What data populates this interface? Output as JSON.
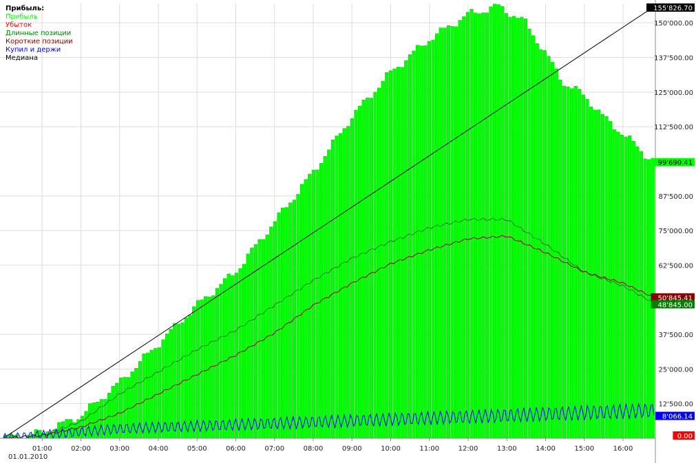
{
  "chart_data": {
    "type": "bar",
    "title": "Прибыль:",
    "date_label": "01.01.2010",
    "legend": [
      {
        "label": "Прибыль",
        "color": "#00ff00"
      },
      {
        "label": "Убыток",
        "color": "#ff0000"
      },
      {
        "label": "Длинные позиции",
        "color": "#008000"
      },
      {
        "label": "Короткие позиции",
        "color": "#8b0000"
      },
      {
        "label": "Купил и держи",
        "color": "#0000ff"
      },
      {
        "label": "Медиана",
        "color": "#000000"
      }
    ],
    "x_ticks": [
      "01:00",
      "02:00",
      "03:00",
      "04:00",
      "05:00",
      "06:00",
      "07:00",
      "08:00",
      "09:00",
      "10:00",
      "11:00",
      "12:00",
      "13:00",
      "14:00",
      "15:00",
      "16:00"
    ],
    "y_ticks": [
      "150'000.00",
      "137'500.00",
      "125'000.00",
      "112'500.00",
      "87'500.00",
      "75'000.00",
      "62'500.00",
      "37'500.00",
      "25'000.00",
      "12'500.00"
    ],
    "ylim": [
      0,
      157000
    ],
    "xlim": [
      0,
      16.8
    ],
    "grid": true,
    "value_labels": [
      {
        "text": "155'826.70",
        "value": 155826.7,
        "bg": "#000000",
        "fg": "#ffffff"
      },
      {
        "text": "99'690.41",
        "value": 99690.41,
        "bg": "#00ff00",
        "fg": "#000000"
      },
      {
        "text": "50'845.41",
        "value": 50845.41,
        "bg": "#8b0000",
        "fg": "#ffffff"
      },
      {
        "text": "48'845.00",
        "value": 48845.0,
        "bg": "#008000",
        "fg": "#ffffff"
      },
      {
        "text": "8'066.14",
        "value": 8066.14,
        "bg": "#0000ff",
        "fg": "#ffffff"
      },
      {
        "text": "0.00",
        "value": 0,
        "bg": "#ff0000",
        "fg": "#ffffff"
      }
    ],
    "profit_curve": {
      "x": [
        0,
        1,
        2,
        3,
        4,
        5,
        6,
        7,
        8,
        9,
        10,
        11,
        12,
        12.8,
        13.5,
        14,
        14.5,
        15,
        15.5,
        16,
        16.8
      ],
      "y": [
        0,
        2000,
        8000,
        20000,
        34000,
        48000,
        60000,
        78000,
        96000,
        116000,
        132000,
        144000,
        153000,
        156000,
        150000,
        139000,
        128000,
        124000,
        116000,
        110000,
        99690
      ]
    },
    "series": [
      {
        "name": "Длинные позиции",
        "color": "#008000",
        "x": [
          0,
          1,
          2,
          3,
          4,
          5,
          6,
          7,
          8,
          9,
          10,
          11,
          12,
          13,
          14,
          15,
          16,
          16.8
        ],
        "y": [
          0,
          1000,
          6000,
          16000,
          24000,
          32000,
          39000,
          48000,
          57000,
          65000,
          71000,
          76000,
          79000,
          79000,
          70000,
          60000,
          55000,
          48845
        ]
      },
      {
        "name": "Короткие позиции",
        "color": "#8b0000",
        "x": [
          0,
          1,
          2,
          3,
          4,
          5,
          6,
          7,
          8,
          9,
          10,
          11,
          12,
          13,
          14,
          15,
          16,
          16.8
        ],
        "y": [
          0,
          1000,
          4000,
          9000,
          16000,
          23000,
          30000,
          38000,
          48000,
          56000,
          63000,
          68000,
          72000,
          73000,
          67000,
          60000,
          56000,
          50845
        ]
      },
      {
        "name": "Медиана",
        "color": "#000000",
        "x": [
          0,
          16.8
        ],
        "y": [
          0,
          155826.7
        ]
      }
    ],
    "buy_hold": {
      "color": "#0000ff",
      "start": 0,
      "end": 8066.14,
      "amplitude": 2800
    }
  }
}
